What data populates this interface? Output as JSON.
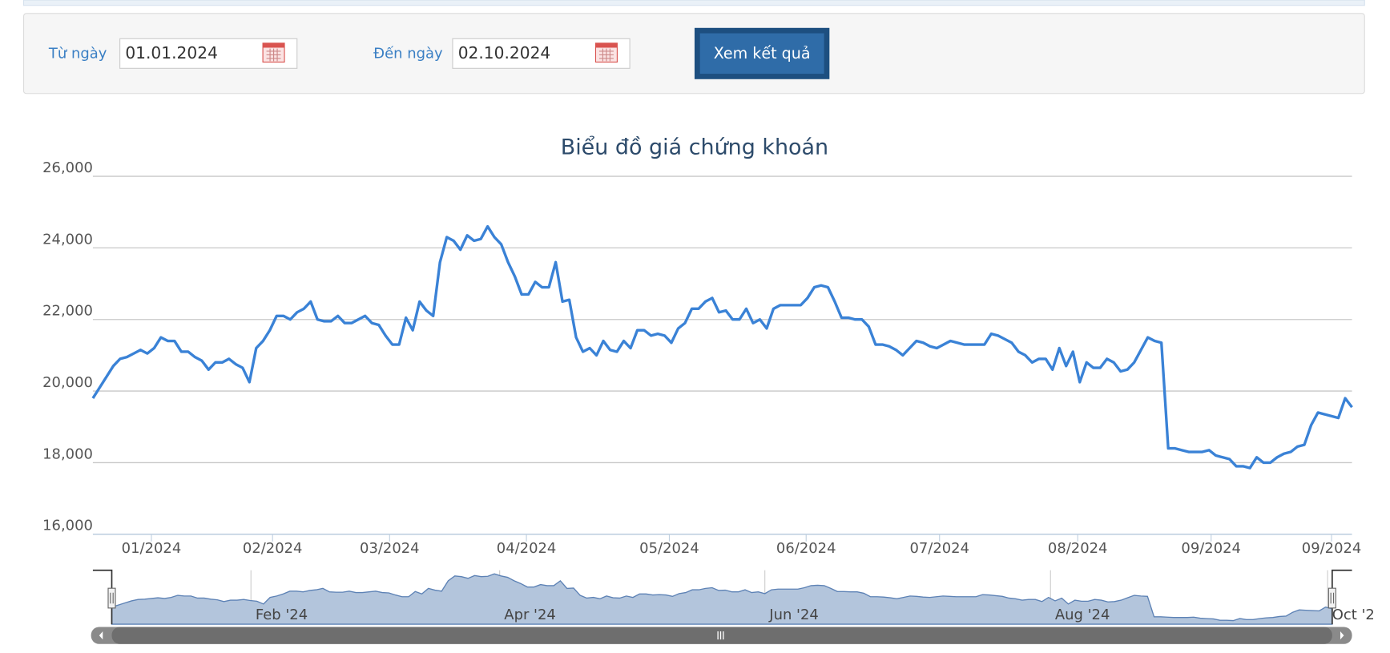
{
  "form": {
    "from_label": "Từ ngày",
    "from_value": "01.01.2024",
    "to_label": "Đến ngày",
    "to_value": "02.10.2024",
    "button": "Xem kết quả"
  },
  "chart_data": {
    "type": "line",
    "title": "Biểu đồ giá chứng khoán",
    "series": [
      {
        "color": "#3a82d6",
        "values": [
          19800,
          20100,
          20400,
          20700,
          20900,
          20950,
          21050,
          21150,
          21050,
          21200,
          21500,
          21400,
          21400,
          21100,
          21100,
          20950,
          20850,
          20600,
          20800,
          20800,
          20900,
          20750,
          20650,
          20250,
          21200,
          21400,
          21700,
          22100,
          22100,
          22000,
          22200,
          22300,
          22500,
          22000,
          21950,
          21950,
          22100,
          21900,
          21900,
          22000,
          22100,
          21900,
          21850,
          21550,
          21300,
          21300,
          22050,
          21700,
          22500,
          22250,
          22100,
          23600,
          24300,
          24200,
          23950,
          24350,
          24200,
          24250,
          24600,
          24300,
          24100,
          23600,
          23200,
          22700,
          22700,
          23050,
          22900,
          22900,
          23600,
          22500,
          22550,
          21500,
          21100,
          21200,
          21000,
          21400,
          21150,
          21100,
          21400,
          21200,
          21700,
          21700,
          21550,
          21600,
          21550,
          21350,
          21750,
          21900,
          22300,
          22300,
          22500,
          22600,
          22200,
          22250,
          22000,
          22000,
          22300,
          21900,
          22000,
          21750,
          22300,
          22400,
          22400,
          22400,
          22400,
          22600,
          22900,
          22950,
          22900,
          22500,
          22050,
          22050,
          22000,
          22000,
          21800,
          21300,
          21300,
          21250,
          21150,
          21000,
          21200,
          21400,
          21350,
          21250,
          21200,
          21300,
          21400,
          21350,
          21300,
          21300,
          21300,
          21300,
          21600,
          21550,
          21450,
          21350,
          21100,
          21000,
          20800,
          20900,
          20900,
          20600,
          21200,
          20700,
          21100,
          20250,
          20800,
          20650,
          20650,
          20900,
          20800,
          20550,
          20600,
          20800,
          21150,
          21500,
          21400,
          21350,
          18400,
          18400,
          18350,
          18300,
          18300,
          18300,
          18350,
          18200,
          18150,
          18100,
          17900,
          17900,
          17850,
          18150,
          18000,
          18000,
          18150,
          18250,
          18300,
          18450,
          18500,
          19050,
          19400,
          19350,
          19300,
          19250,
          19800,
          19550
        ]
      }
    ],
    "xlim": [
      0,
      185
    ],
    "xticks": [
      {
        "value": 8.6,
        "label": "01/2024"
      },
      {
        "value": 26.4,
        "label": "02/2024"
      },
      {
        "value": 43.6,
        "label": "03/2024"
      },
      {
        "value": 63.7,
        "label": "04/2024"
      },
      {
        "value": 84.7,
        "label": "05/2024"
      },
      {
        "value": 104.8,
        "label": "06/2024"
      },
      {
        "value": 124.4,
        "label": "07/2024"
      },
      {
        "value": 144.7,
        "label": "08/2024"
      },
      {
        "value": 164.3,
        "label": "09/2024"
      },
      {
        "value": 182.0,
        "label": "09/2024"
      }
    ],
    "ylim": [
      16000,
      26000
    ],
    "yticks": [
      {
        "value": 16000,
        "label": "16,000"
      },
      {
        "value": 18000,
        "label": "18,000"
      },
      {
        "value": 20000,
        "label": "20,000"
      },
      {
        "value": 22000,
        "label": "22,000"
      },
      {
        "value": 24000,
        "label": "24,000"
      },
      {
        "value": 26000,
        "label": "26,000"
      }
    ],
    "grid": true,
    "navigator_ticks": [
      {
        "value": 21.1,
        "label": "Feb '24"
      },
      {
        "value": 58.8,
        "label": "Apr '24"
      },
      {
        "value": 99,
        "label": "Jun '24"
      },
      {
        "value": 142.3,
        "label": "Aug '24"
      },
      {
        "value": 184.3,
        "label": "Oct '2"
      }
    ]
  }
}
